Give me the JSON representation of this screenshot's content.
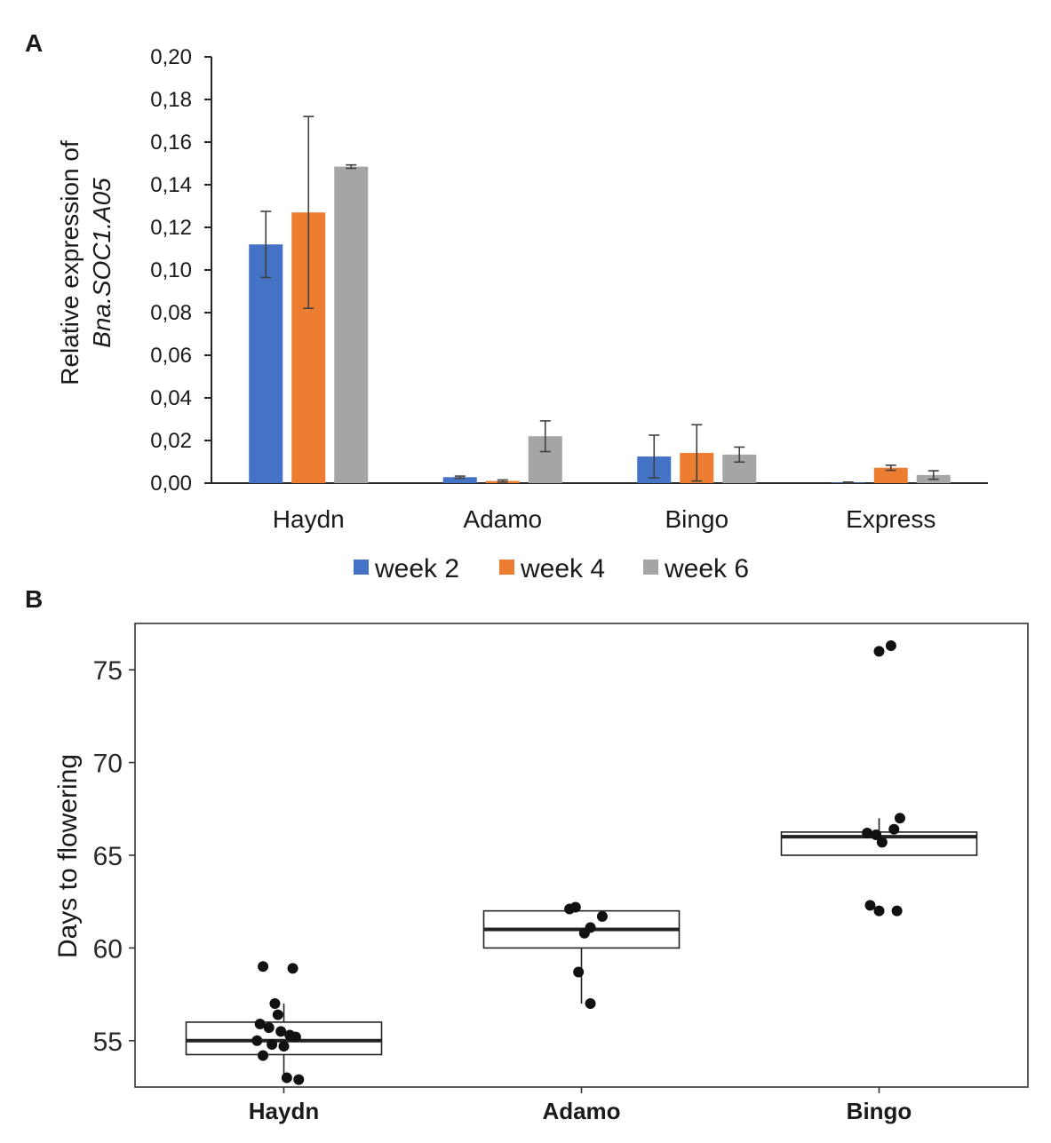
{
  "chart_data": [
    {
      "panel": "A",
      "type": "bar",
      "ylabel_line1": "Relative expression of",
      "ylabel_line2": "Bna.SOC1.A05",
      "ylim": [
        0,
        0.2
      ],
      "yticks": [
        "0,00",
        "0,02",
        "0,04",
        "0,06",
        "0,08",
        "0,10",
        "0,12",
        "0,14",
        "0,16",
        "0,18",
        "0,20"
      ],
      "categories": [
        "Haydn",
        "Adamo",
        "Bingo",
        "Express"
      ],
      "legend_position": "bottom",
      "series": [
        {
          "name": "week 2",
          "color": "#4472c4",
          "values": [
            0.112,
            0.0028,
            0.0125,
            0.0003
          ],
          "errors": [
            0.0155,
            0.0005,
            0.01,
            0.0002
          ]
        },
        {
          "name": "week 4",
          "color": "#ed7d31",
          "values": [
            0.127,
            0.001,
            0.0142,
            0.0072
          ],
          "errors": [
            0.045,
            0.0005,
            0.0132,
            0.0012
          ]
        },
        {
          "name": "week 6",
          "color": "#a5a5a5",
          "values": [
            0.1485,
            0.022,
            0.0134,
            0.0038
          ],
          "errors": [
            0.0008,
            0.0072,
            0.0035,
            0.002
          ]
        }
      ]
    },
    {
      "panel": "B",
      "type": "box",
      "ylabel": "Days to flowering",
      "ylim": [
        52.5,
        77.5
      ],
      "yticks": [
        55,
        60,
        65,
        70,
        75
      ],
      "categories": [
        "Haydn",
        "Adamo",
        "Bingo"
      ],
      "boxes": [
        {
          "q1": 54.25,
          "median": 55,
          "q3": 56,
          "whisker_low": 53,
          "whisker_high": 57
        },
        {
          "q1": 60,
          "median": 61,
          "q3": 62,
          "whisker_low": 57,
          "whisker_high": 62
        },
        {
          "q1": 65,
          "median": 66,
          "q3": 66.25,
          "whisker_low": 65,
          "whisker_high": 67
        }
      ],
      "points": [
        [
          {
            "jitter": -0.07,
            "y": 59.0
          },
          {
            "jitter": 0.03,
            "y": 58.9
          },
          {
            "jitter": -0.03,
            "y": 57.0
          },
          {
            "jitter": -0.02,
            "y": 56.4
          },
          {
            "jitter": -0.08,
            "y": 55.9
          },
          {
            "jitter": -0.05,
            "y": 55.7
          },
          {
            "jitter": -0.01,
            "y": 55.5
          },
          {
            "jitter": 0.02,
            "y": 55.3
          },
          {
            "jitter": 0.04,
            "y": 55.2
          },
          {
            "jitter": -0.09,
            "y": 55.0
          },
          {
            "jitter": -0.04,
            "y": 54.8
          },
          {
            "jitter": 0.0,
            "y": 54.7
          },
          {
            "jitter": -0.07,
            "y": 54.2
          },
          {
            "jitter": 0.01,
            "y": 53.0
          },
          {
            "jitter": 0.05,
            "y": 52.9
          }
        ],
        [
          {
            "jitter": -0.04,
            "y": 62.1
          },
          {
            "jitter": -0.02,
            "y": 62.2
          },
          {
            "jitter": 0.07,
            "y": 61.7
          },
          {
            "jitter": 0.03,
            "y": 61.1
          },
          {
            "jitter": 0.01,
            "y": 60.8
          },
          {
            "jitter": -0.01,
            "y": 58.7
          },
          {
            "jitter": 0.03,
            "y": 57.0
          }
        ],
        [
          {
            "jitter": 0.0,
            "y": 76.0
          },
          {
            "jitter": 0.04,
            "y": 76.3
          },
          {
            "jitter": 0.07,
            "y": 67.0
          },
          {
            "jitter": 0.05,
            "y": 66.4
          },
          {
            "jitter": -0.04,
            "y": 66.2
          },
          {
            "jitter": -0.01,
            "y": 66.1
          },
          {
            "jitter": 0.01,
            "y": 65.7
          },
          {
            "jitter": -0.03,
            "y": 62.3
          },
          {
            "jitter": 0.0,
            "y": 62.0
          },
          {
            "jitter": 0.06,
            "y": 62.0
          }
        ]
      ]
    }
  ]
}
